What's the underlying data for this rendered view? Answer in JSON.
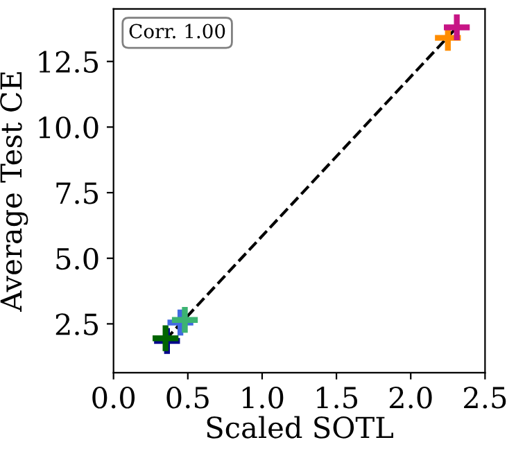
{
  "chart_data": {
    "type": "scatter",
    "xlabel": "Scaled SOTL",
    "ylabel": "Average Test CE",
    "annotations": [
      "Corr. 1.00"
    ],
    "xlim": [
      0,
      2.5
    ],
    "ylim": [
      0.64,
      14.5
    ],
    "xticks": [
      {
        "value": 0,
        "label": "0.0"
      },
      0.5,
      {
        "value": 1,
        "label": "1.0"
      },
      1.5,
      {
        "value": 2,
        "label": "2.0"
      },
      2.5
    ],
    "yticks": [
      2.5,
      {
        "value": 5,
        "label": "5.0"
      },
      7.5,
      {
        "value": 10,
        "label": "10.0"
      },
      12.5
    ],
    "marker": "cross",
    "grid": false,
    "series": [
      {
        "color": "#00008b",
        "x": [
          0.36
        ],
        "values": [
          1.85
        ]
      },
      {
        "color": "#006400",
        "x": [
          0.35
        ],
        "values": [
          1.95
        ]
      },
      {
        "color": "#4169e1",
        "x": [
          0.45
        ],
        "values": [
          2.55
        ]
      },
      {
        "color": "#3cb371",
        "x": [
          0.48
        ],
        "values": [
          2.65
        ]
      },
      {
        "color": "#ff8c00",
        "x": [
          2.25
        ],
        "values": [
          13.4
        ]
      },
      {
        "color": "#c71585",
        "x": [
          2.31
        ],
        "values": [
          13.8
        ]
      },
      {
        "type": "line",
        "color": "#000000",
        "line_style": "dashed",
        "marker": "none",
        "x": [
          0.35,
          2.31
        ],
        "values": [
          1.9,
          13.8
        ]
      }
    ]
  }
}
